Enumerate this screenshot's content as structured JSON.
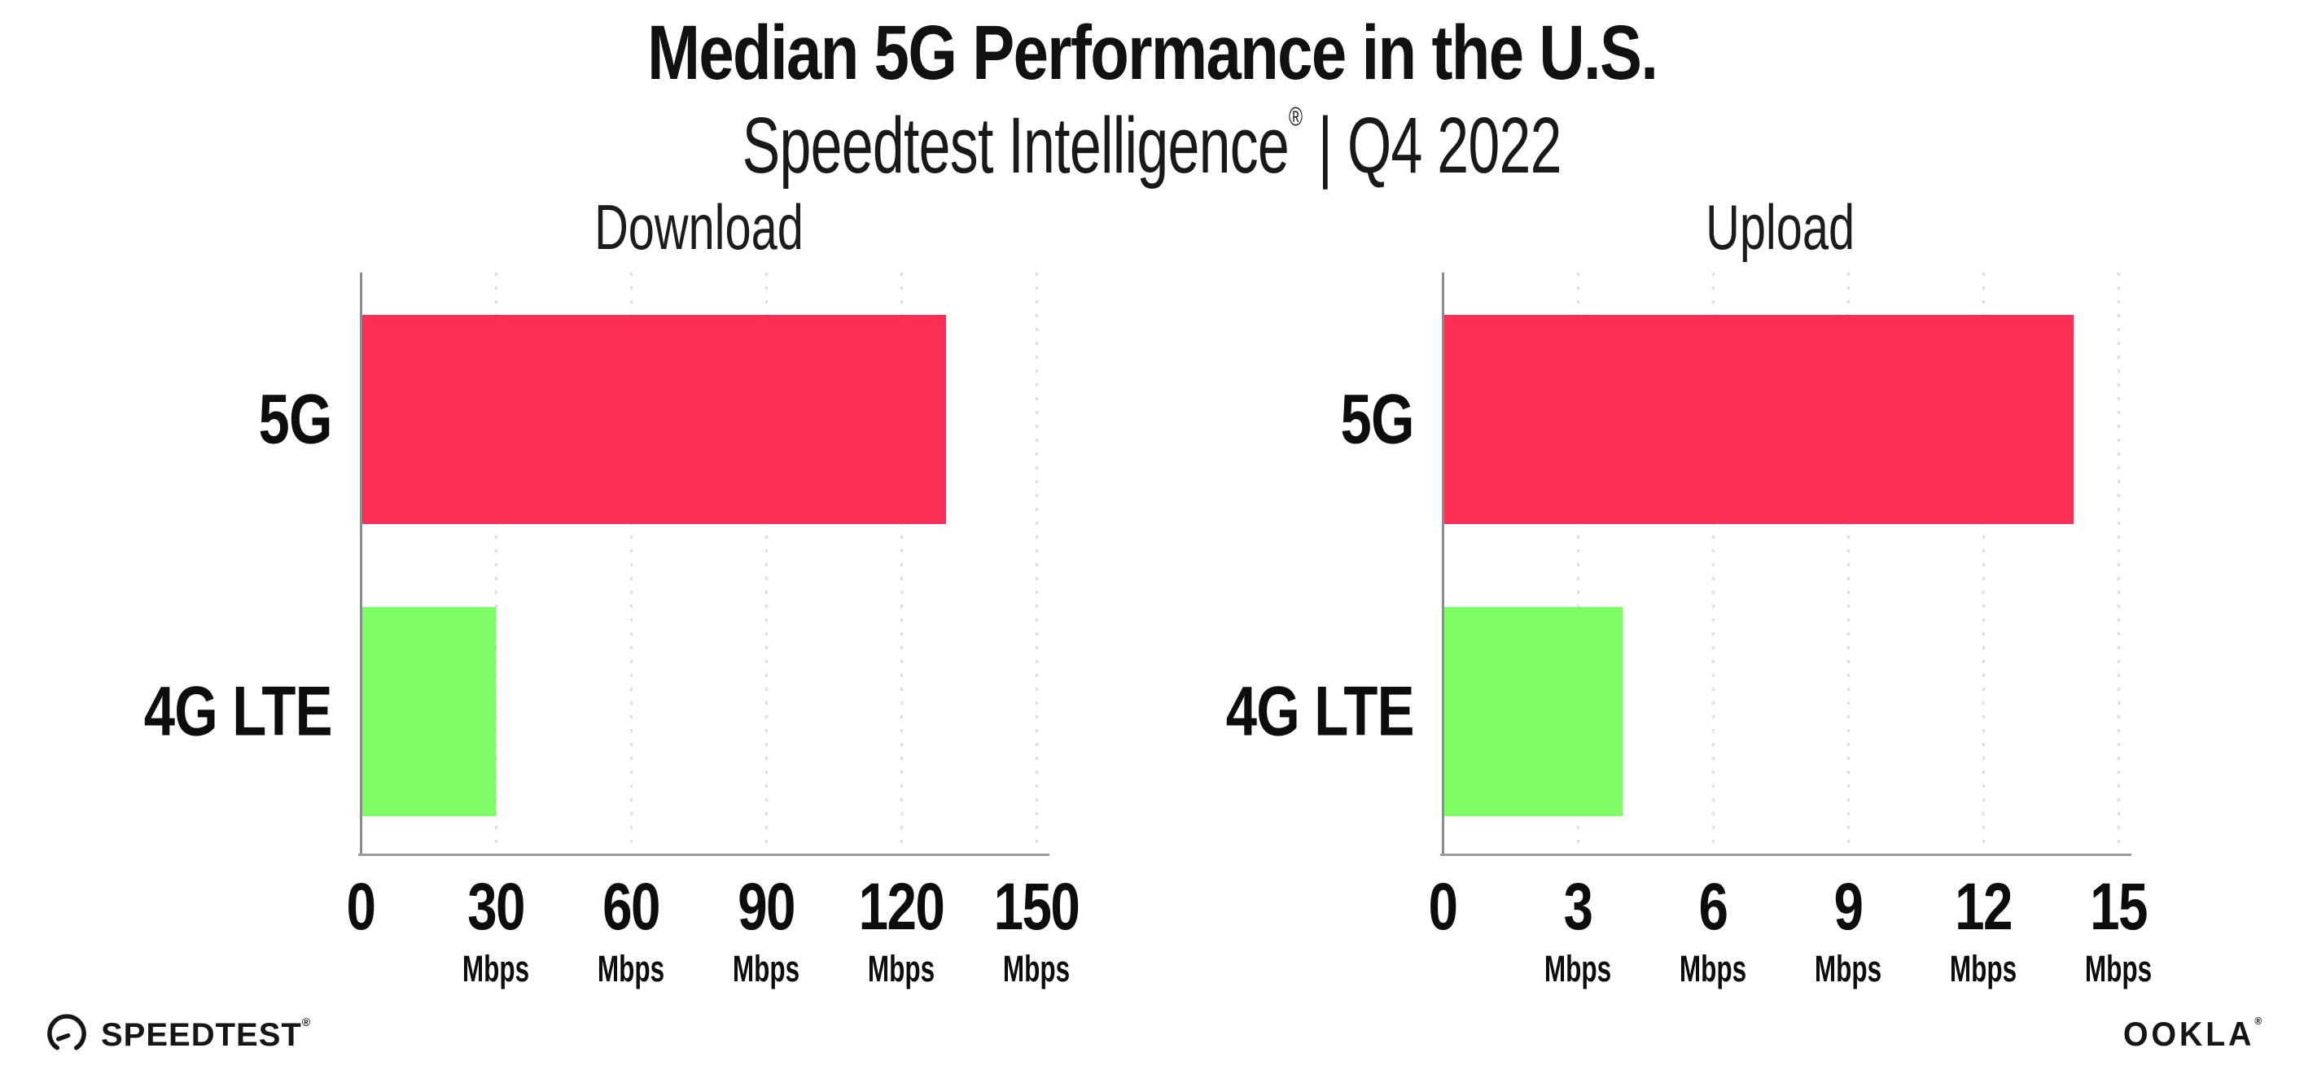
{
  "header": {
    "title": "Median 5G Performance in the U.S.",
    "subtitle_brand": "Speedtest Intelligence",
    "subtitle_mark": "®",
    "subtitle_rest": "| Q4 2022"
  },
  "chart_data": [
    {
      "type": "bar",
      "orientation": "horizontal",
      "title": "Download",
      "categories": [
        "5G",
        "4G LTE"
      ],
      "values": [
        130,
        30
      ],
      "unit": "Mbps",
      "xlabel": "",
      "ylabel": "",
      "xlim": [
        0,
        150
      ],
      "xticks": [
        0,
        30,
        60,
        90,
        120,
        150
      ],
      "tick_labels": [
        {
          "label": "0",
          "unit": ""
        },
        {
          "label": "30",
          "unit": "Mbps"
        },
        {
          "label": "60",
          "unit": "Mbps"
        },
        {
          "label": "90",
          "unit": "Mbps"
        },
        {
          "label": "120",
          "unit": "Mbps"
        },
        {
          "label": "150",
          "unit": "Mbps"
        }
      ],
      "bar_colors": [
        "#FE2D55",
        "#7DFC66"
      ],
      "grid": true,
      "legend": false
    },
    {
      "type": "bar",
      "orientation": "horizontal",
      "title": "Upload",
      "categories": [
        "5G",
        "4G LTE"
      ],
      "values": [
        14,
        4
      ],
      "unit": "Mbps",
      "xlabel": "",
      "ylabel": "",
      "xlim": [
        0,
        15
      ],
      "xticks": [
        0,
        3,
        6,
        9,
        12,
        15
      ],
      "tick_labels": [
        {
          "label": "0",
          "unit": ""
        },
        {
          "label": "3",
          "unit": "Mbps"
        },
        {
          "label": "6",
          "unit": "Mbps"
        },
        {
          "label": "9",
          "unit": "Mbps"
        },
        {
          "label": "12",
          "unit": "Mbps"
        },
        {
          "label": "15",
          "unit": "Mbps"
        }
      ],
      "bar_colors": [
        "#FE2D55",
        "#7DFC66"
      ],
      "grid": true,
      "legend": false
    }
  ],
  "colors": {
    "bar_5g": "#FE2D55",
    "bar_4g_lte": "#7DFC66",
    "x_axis": "#9A9A9A",
    "y_axis": "#8C8C8C",
    "gridline": "#DEDEE8",
    "text": "#111111",
    "background": "#FFFFFF"
  },
  "footer": {
    "speedtest_label": "SPEEDTEST",
    "speedtest_mark": "®",
    "ookla_label": "OOKLA",
    "ookla_mark": "®"
  }
}
